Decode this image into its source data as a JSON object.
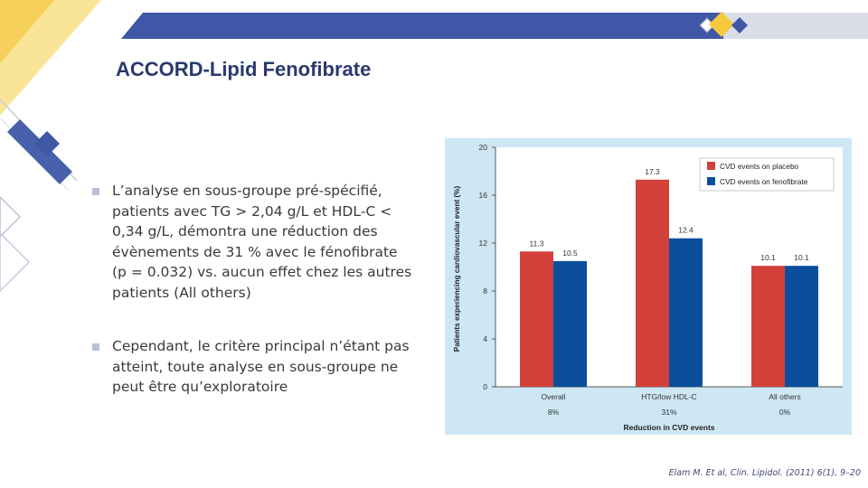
{
  "title": "ACCORD-Lipid Fenofibrate",
  "bullets": [
    {
      "lines": [
        "L’analyse en sous-groupe pré-spécifié,",
        "patients avec TG > 2,04 g/L et HDL‑C <",
        "0,34 g/L, démontra une réduction des",
        "évènements de 31 % avec le fénofibrate",
        "(p = 0.032) vs. aucun effet chez les autres",
        "patients (All others)"
      ]
    },
    {
      "lines": [
        "Cependant, le critère principal n’étant pas",
        "atteint, toute analyse en sous-groupe ne",
        "peut être qu’exploratoire"
      ]
    }
  ],
  "citation": "Elam M. Et al, Clin. Lipidol. (2011) 6(1), 9–20",
  "colors": {
    "placebo": "#d2403a",
    "fenofibrate": "#0b4f9c",
    "header": "#3f57a6",
    "accent_yellow": "#f7d35c",
    "panel": "#cde7f4"
  },
  "chart_data": {
    "type": "bar",
    "ylabel": "Patients experiencing cardiovascular event (%)",
    "xlabel": "Reduction in CVD events",
    "categories": [
      "Overall",
      "HTG/low HDL-C",
      "All others"
    ],
    "reductions": [
      "8%",
      "31%",
      "0%"
    ],
    "ylim": [
      0,
      20
    ],
    "yticks": [
      "0",
      "4",
      "8",
      "12",
      "16",
      "20"
    ],
    "legend_position": "top-right",
    "series": [
      {
        "name": "CVD events on placebo",
        "values": [
          11.3,
          17.3,
          10.1
        ],
        "labels": [
          "11.3",
          "17.3",
          "10.1"
        ]
      },
      {
        "name": "CVD events on fenofibrate",
        "values": [
          10.5,
          12.4,
          10.1
        ],
        "labels": [
          "10.5",
          "12.4",
          "10.1"
        ]
      }
    ]
  }
}
